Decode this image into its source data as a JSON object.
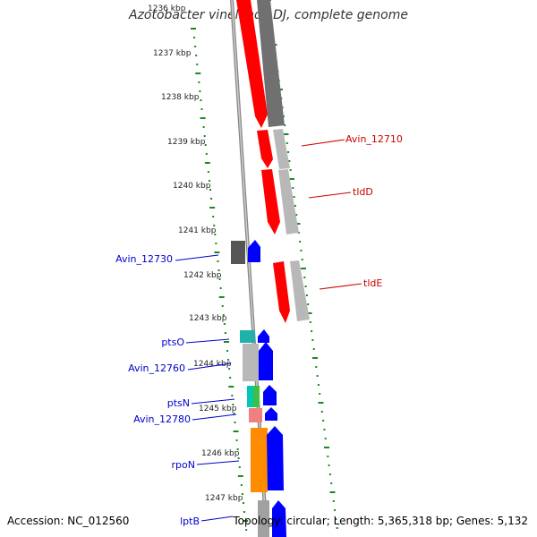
{
  "title": "Azotobacter vinelandii DJ, complete genome",
  "footer": {
    "accession": "Accession: NC_012560",
    "stats": "Topology: circular; Length: 5,365,318 bp; Genes: 5,132"
  },
  "ticks": [
    "1236 kbp",
    "1237 kbp",
    "1238 kbp",
    "1239 kbp",
    "1240 kbp",
    "1241 kbp",
    "1242 kbp",
    "1243 kbp",
    "1244 kbp",
    "1245 kbp",
    "1246 kbp",
    "1247 kbp"
  ],
  "labels_right": [
    "Avin_12710",
    "tldD",
    "tldE"
  ],
  "labels_left": [
    "Avin_12730",
    "ptsO",
    "Avin_12760",
    "ptsN",
    "Avin_12780",
    "rpoN",
    "lptB"
  ],
  "colors": {
    "forward_gene": "#ff0000",
    "reverse_gene": "#0000ff",
    "right_label": "#cc0000",
    "left_label": "#0000cc",
    "tick_dash": "#1a8a1a"
  }
}
